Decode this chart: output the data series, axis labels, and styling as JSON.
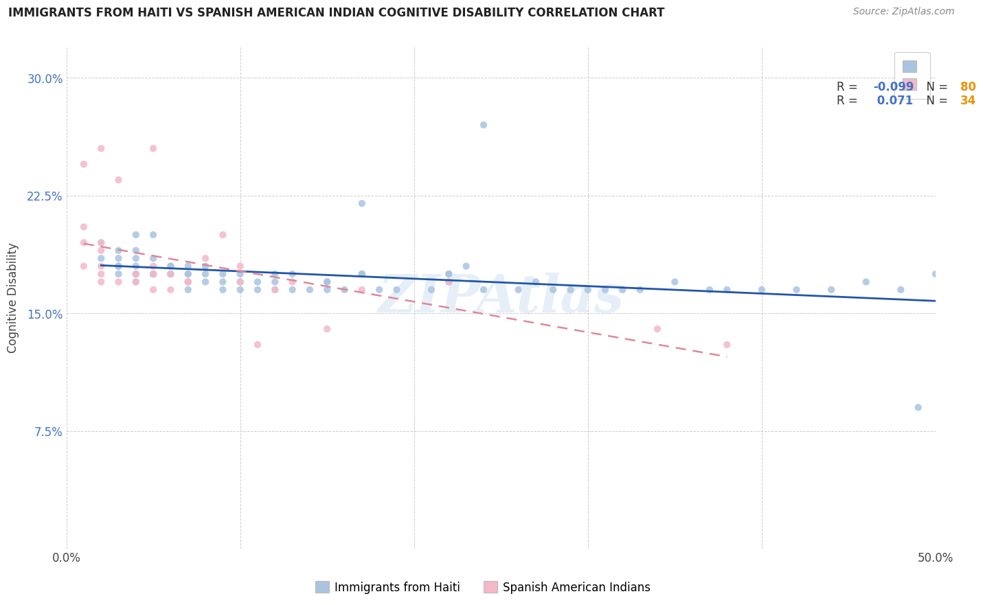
{
  "title": "IMMIGRANTS FROM HAITI VS SPANISH AMERICAN INDIAN COGNITIVE DISABILITY CORRELATION CHART",
  "source": "Source: ZipAtlas.com",
  "ylabel": "Cognitive Disability",
  "xlim": [
    0.0,
    0.5
  ],
  "ylim": [
    0.0,
    0.32
  ],
  "xticks": [
    0.0,
    0.1,
    0.2,
    0.3,
    0.4,
    0.5
  ],
  "xticklabels": [
    "0.0%",
    "",
    "",
    "",
    "",
    "50.0%"
  ],
  "yticks": [
    0.075,
    0.15,
    0.225,
    0.3
  ],
  "yticklabels": [
    "7.5%",
    "15.0%",
    "22.5%",
    "30.0%"
  ],
  "haiti_R": -0.099,
  "haiti_N": 80,
  "spanish_R": 0.071,
  "spanish_N": 34,
  "haiti_color": "#aac4e0",
  "spanish_color": "#f4b8c8",
  "haiti_line_color": "#2255aa",
  "spanish_line_color": "#dd8899",
  "haiti_x": [
    0.02,
    0.02,
    0.03,
    0.03,
    0.03,
    0.03,
    0.03,
    0.03,
    0.04,
    0.04,
    0.04,
    0.04,
    0.04,
    0.04,
    0.04,
    0.05,
    0.05,
    0.05,
    0.05,
    0.06,
    0.06,
    0.06,
    0.06,
    0.07,
    0.07,
    0.07,
    0.07,
    0.07,
    0.07,
    0.08,
    0.08,
    0.08,
    0.09,
    0.09,
    0.09,
    0.1,
    0.1,
    0.1,
    0.11,
    0.11,
    0.12,
    0.12,
    0.12,
    0.13,
    0.13,
    0.14,
    0.15,
    0.15,
    0.15,
    0.16,
    0.17,
    0.17,
    0.17,
    0.18,
    0.19,
    0.21,
    0.22,
    0.22,
    0.22,
    0.23,
    0.24,
    0.24,
    0.26,
    0.27,
    0.28,
    0.29,
    0.3,
    0.31,
    0.32,
    0.33,
    0.35,
    0.37,
    0.38,
    0.4,
    0.42,
    0.44,
    0.46,
    0.48,
    0.49,
    0.5
  ],
  "haiti_y": [
    0.185,
    0.195,
    0.175,
    0.18,
    0.18,
    0.18,
    0.185,
    0.19,
    0.17,
    0.175,
    0.175,
    0.18,
    0.185,
    0.19,
    0.2,
    0.175,
    0.175,
    0.185,
    0.2,
    0.175,
    0.175,
    0.18,
    0.18,
    0.165,
    0.17,
    0.17,
    0.175,
    0.175,
    0.18,
    0.17,
    0.175,
    0.18,
    0.165,
    0.17,
    0.175,
    0.165,
    0.17,
    0.175,
    0.165,
    0.17,
    0.165,
    0.17,
    0.175,
    0.165,
    0.175,
    0.165,
    0.165,
    0.17,
    0.17,
    0.165,
    0.22,
    0.175,
    0.175,
    0.165,
    0.165,
    0.165,
    0.17,
    0.175,
    0.175,
    0.18,
    0.27,
    0.165,
    0.165,
    0.17,
    0.165,
    0.165,
    0.165,
    0.165,
    0.165,
    0.165,
    0.17,
    0.165,
    0.165,
    0.165,
    0.165,
    0.165,
    0.17,
    0.165,
    0.09,
    0.175
  ],
  "spanish_x": [
    0.01,
    0.01,
    0.01,
    0.01,
    0.02,
    0.02,
    0.02,
    0.02,
    0.02,
    0.02,
    0.03,
    0.03,
    0.04,
    0.04,
    0.05,
    0.05,
    0.05,
    0.05,
    0.06,
    0.06,
    0.07,
    0.07,
    0.08,
    0.09,
    0.1,
    0.1,
    0.11,
    0.12,
    0.13,
    0.15,
    0.17,
    0.22,
    0.34,
    0.38
  ],
  "spanish_y": [
    0.18,
    0.195,
    0.205,
    0.245,
    0.17,
    0.175,
    0.18,
    0.19,
    0.195,
    0.255,
    0.17,
    0.235,
    0.17,
    0.175,
    0.165,
    0.175,
    0.18,
    0.255,
    0.165,
    0.175,
    0.17,
    0.17,
    0.185,
    0.2,
    0.17,
    0.18,
    0.13,
    0.165,
    0.17,
    0.14,
    0.165,
    0.17,
    0.14,
    0.13
  ]
}
